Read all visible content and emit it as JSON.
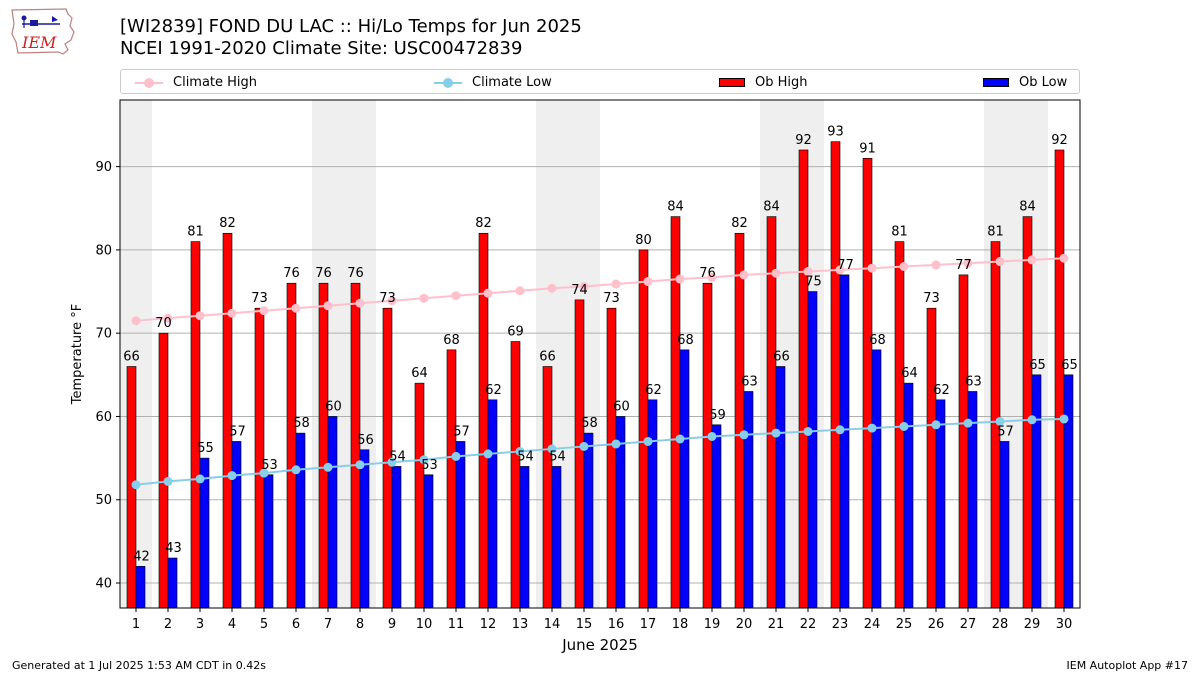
{
  "header": {
    "title_line1": "[WI2839] FOND DU LAC :: Hi/Lo Temps for Jun 2025",
    "title_line2": "NCEI 1991-2020 Climate Site: USC00472839"
  },
  "logo": {
    "text": "IEM"
  },
  "legend": {
    "position": "top",
    "items": [
      {
        "label": "Climate High",
        "kind": "line",
        "color": "#ffc0cb"
      },
      {
        "label": "Climate Low",
        "kind": "line",
        "color": "#87ceeb"
      },
      {
        "label": "Ob High",
        "kind": "bar",
        "color": "#ff0000"
      },
      {
        "label": "Ob Low",
        "kind": "bar",
        "color": "#0000ff"
      }
    ]
  },
  "footer": {
    "generated": "Generated at 1 Jul 2025 1:53 AM CDT in 0.42s",
    "app": "IEM Autoplot App #17"
  },
  "chart_data": {
    "type": "bar",
    "xlabel": "June 2025",
    "ylabel": "Temperature °F",
    "ylim": [
      37,
      98
    ],
    "yticks": [
      40,
      50,
      60,
      70,
      80,
      90
    ],
    "grid": "horizontal",
    "weekend_shading_color": "#efefef",
    "weekend_days": [
      1,
      7,
      8,
      14,
      15,
      21,
      22,
      28,
      29
    ],
    "categories": [
      "1",
      "2",
      "3",
      "4",
      "5",
      "6",
      "7",
      "8",
      "9",
      "10",
      "11",
      "12",
      "13",
      "14",
      "15",
      "16",
      "17",
      "18",
      "19",
      "20",
      "21",
      "22",
      "23",
      "24",
      "25",
      "26",
      "27",
      "28",
      "29",
      "30"
    ],
    "series": [
      {
        "name": "Ob High",
        "type": "bar",
        "color": "#ff0000",
        "values": [
          66,
          70,
          81,
          82,
          73,
          76,
          76,
          76,
          73,
          64,
          68,
          82,
          69,
          66,
          74,
          73,
          80,
          84,
          76,
          82,
          84,
          92,
          93,
          91,
          81,
          73,
          77,
          81,
          84,
          92
        ]
      },
      {
        "name": "Ob Low",
        "type": "bar",
        "color": "#0000ff",
        "values": [
          42,
          43,
          55,
          57,
          53,
          58,
          60,
          56,
          54,
          53,
          57,
          62,
          54,
          54,
          58,
          60,
          62,
          68,
          59,
          63,
          66,
          75,
          77,
          68,
          64,
          62,
          63,
          57,
          65,
          65
        ]
      },
      {
        "name": "Climate High",
        "type": "line",
        "color": "#ffc0cb",
        "values": [
          71.5,
          71.8,
          72.1,
          72.4,
          72.7,
          73.0,
          73.3,
          73.6,
          73.9,
          74.2,
          74.5,
          74.8,
          75.1,
          75.4,
          75.6,
          75.9,
          76.2,
          76.5,
          76.7,
          77.0,
          77.2,
          77.4,
          77.6,
          77.8,
          78.0,
          78.2,
          78.4,
          78.6,
          78.8,
          79.0
        ]
      },
      {
        "name": "Climate Low",
        "type": "line",
        "color": "#87ceeb",
        "values": [
          51.8,
          52.2,
          52.5,
          52.9,
          53.2,
          53.6,
          53.9,
          54.2,
          54.5,
          54.8,
          55.2,
          55.5,
          55.8,
          56.1,
          56.4,
          56.7,
          57.0,
          57.3,
          57.6,
          57.8,
          58.0,
          58.2,
          58.4,
          58.6,
          58.8,
          59.0,
          59.2,
          59.4,
          59.6,
          59.7
        ]
      }
    ]
  }
}
